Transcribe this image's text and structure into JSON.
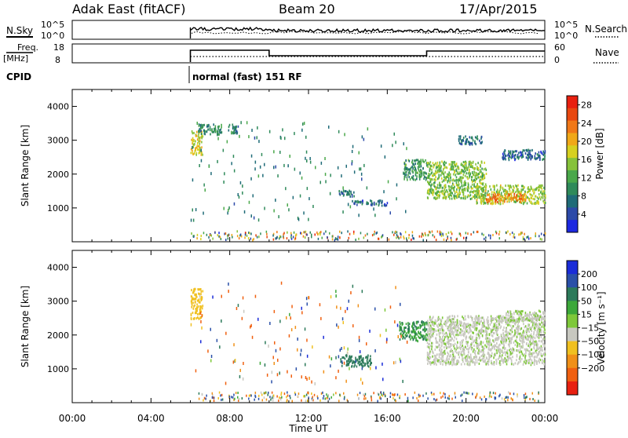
{
  "header": {
    "station": "Adak East (fitACF)",
    "beam": "Beam 20",
    "date": "17/Apr/2015"
  },
  "summary": {
    "nsky_label": "N.Sky",
    "nsky_ticks": [
      "10^5",
      "10^0"
    ],
    "nsearch_label": "N.Search",
    "nsearch_ticks": [
      "10^5",
      "10^0"
    ],
    "freq_label": "Freq.",
    "freq_unit": "[MHz]",
    "freq_ticks": [
      "18",
      "8"
    ],
    "nave_label": "Nave",
    "nave_ticks": [
      "60",
      "0"
    ],
    "cpid_label": "CPID",
    "cpid_text": "normal (fast) 151 RF"
  },
  "chart_data": [
    {
      "type": "heatmap",
      "name": "power",
      "ylabel": "Slant Range [km]",
      "y_ticks": [
        "1000",
        "2000",
        "3000",
        "4000"
      ],
      "y_tick_values": [
        1000,
        2000,
        3000,
        4000
      ],
      "ylim": [
        0,
        4500
      ],
      "xlim_hours": [
        0,
        24
      ],
      "colorbar": {
        "label": "Power [dB]",
        "ticks": [
          "4",
          "8",
          "12",
          "16",
          "20",
          "24",
          "28"
        ],
        "range": [
          0,
          30
        ],
        "colors": [
          "#1c28e0",
          "#2c4aa8",
          "#1f6b78",
          "#2f8a5a",
          "#4aa84a",
          "#86c23a",
          "#d6d020",
          "#f0a818",
          "#f07818",
          "#e84810",
          "#e82010"
        ]
      },
      "echo_regions": [
        {
          "t": [
            6.0,
            6.6
          ],
          "r": [
            2600,
            3300
          ],
          "value": 18
        },
        {
          "t": [
            6.4,
            7.6
          ],
          "r": [
            3200,
            3500
          ],
          "value": 8
        },
        {
          "t": [
            7.9,
            8.4
          ],
          "r": [
            3200,
            3500
          ],
          "value": 7
        },
        {
          "t": [
            13.5,
            14.3
          ],
          "r": [
            1350,
            1550
          ],
          "value": 6
        },
        {
          "t": [
            14.2,
            16.0
          ],
          "r": [
            1100,
            1250
          ],
          "value": 5
        },
        {
          "t": [
            16.8,
            18.0
          ],
          "r": [
            1850,
            2450
          ],
          "value": 10
        },
        {
          "t": [
            18.0,
            21.0
          ],
          "r": [
            1300,
            2400
          ],
          "value": 14
        },
        {
          "t": [
            20.5,
            24.0
          ],
          "r": [
            1150,
            1700
          ],
          "value": 16
        },
        {
          "t": [
            21.0,
            23.0
          ],
          "r": [
            1200,
            1450
          ],
          "value": 24
        },
        {
          "t": [
            21.8,
            24.0
          ],
          "r": [
            2450,
            2750
          ],
          "value": 5
        },
        {
          "t": [
            19.6,
            20.8
          ],
          "r": [
            2900,
            3150
          ],
          "value": 6
        }
      ]
    },
    {
      "type": "heatmap",
      "name": "velocity",
      "ylabel": "Slant Range [km]",
      "y_ticks": [
        "1000",
        "2000",
        "3000",
        "4000"
      ],
      "y_tick_values": [
        1000,
        2000,
        3000,
        4000
      ],
      "ylim": [
        0,
        4500
      ],
      "xlim_hours": [
        0,
        24
      ],
      "xlabel": "Time UT",
      "x_ticks": [
        "00:00",
        "04:00",
        "08:00",
        "12:00",
        "16:00",
        "20:00",
        "00:00"
      ],
      "colorbar": {
        "label": "Velocity [m s⁻¹]",
        "ticks": [
          "200",
          "100",
          "50",
          "15",
          "−15",
          "−50",
          "−100",
          "−200"
        ],
        "colors": [
          "#1a2cd8",
          "#2a50a8",
          "#2c7a5a",
          "#3ca83a",
          "#7ec83a",
          "#c8c8c0",
          "#f0c020",
          "#f09018",
          "#f06010",
          "#e82010"
        ]
      },
      "echo_regions": [
        {
          "t": [
            6.0,
            6.6
          ],
          "r": [
            2500,
            3400
          ],
          "value": -40
        },
        {
          "t": [
            16.6,
            18.0
          ],
          "r": [
            1850,
            2450
          ],
          "value": 30
        },
        {
          "t": [
            18.0,
            24.0
          ],
          "r": [
            1150,
            2600
          ],
          "value": 0
        },
        {
          "t": [
            21.8,
            24.0
          ],
          "r": [
            2450,
            2750
          ],
          "value": 0
        },
        {
          "t": [
            13.6,
            15.2
          ],
          "r": [
            1100,
            1450
          ],
          "value": 40
        }
      ]
    }
  ]
}
